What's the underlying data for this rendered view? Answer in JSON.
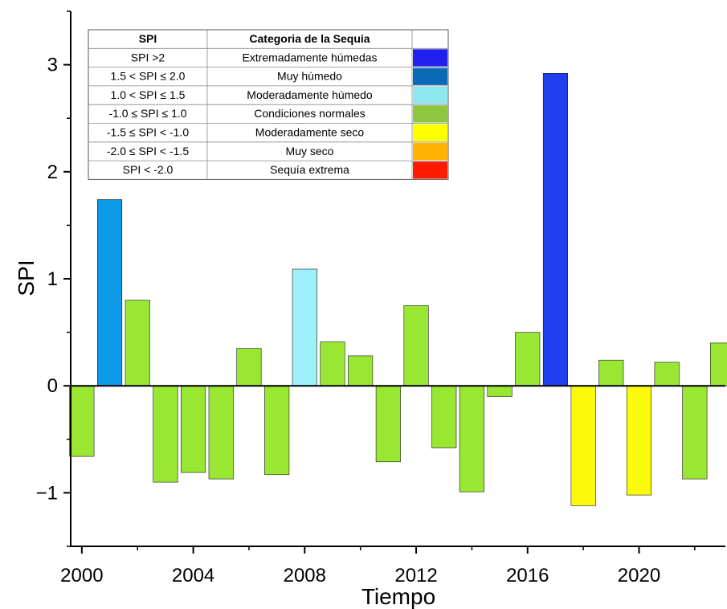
{
  "chart_data": {
    "type": "bar",
    "xlabel": "Tiempo",
    "ylabel": "SPI",
    "xlim": [
      1999.6,
      2023.1
    ],
    "ylim": [
      -1.5,
      3.5
    ],
    "x_ticks": [
      2000,
      2004,
      2008,
      2012,
      2016,
      2020
    ],
    "y_ticks": [
      -1,
      0,
      1,
      2,
      3
    ],
    "y_tick_labels": [
      "−1",
      "0",
      "1",
      "2",
      "3"
    ],
    "x": [
      2000,
      2001,
      2002,
      2003,
      2004,
      2005,
      2006,
      2007,
      2008,
      2009,
      2010,
      2011,
      2012,
      2013,
      2014,
      2015,
      2016,
      2017,
      2018,
      2019,
      2020,
      2021,
      2022,
      2023
    ],
    "values": [
      -0.66,
      1.74,
      0.8,
      -0.9,
      -0.81,
      -0.87,
      0.35,
      -0.83,
      1.09,
      0.41,
      0.28,
      -0.71,
      0.75,
      -0.58,
      -0.99,
      -0.1,
      0.5,
      2.92,
      -1.12,
      0.24,
      -1.02,
      0.22,
      -0.87,
      0.4
    ],
    "bar_colors": [
      "#99e633",
      "#0d9be8",
      "#99e633",
      "#99e633",
      "#99e633",
      "#99e633",
      "#99e633",
      "#99e633",
      "#9ef0fa",
      "#99e633",
      "#99e633",
      "#99e633",
      "#99e633",
      "#99e633",
      "#99e633",
      "#99e633",
      "#99e633",
      "#1f3ef0",
      "#fafa0a",
      "#99e633",
      "#fafa0a",
      "#99e633",
      "#99e633",
      "#99e633"
    ],
    "legend": {
      "headers": [
        "SPI",
        "Categoria de la Sequia"
      ],
      "rows": [
        {
          "range": "SPI >2",
          "category": "Extremadamente húmedas",
          "color": "#1f1ff0"
        },
        {
          "range": "1.5 < SPI ≤ 2.0",
          "category": "Muy húmedo",
          "color": "#0b6ab5"
        },
        {
          "range": "1.0 < SPI ≤ 1.5",
          "category": "Moderadamente húmedo",
          "color": "#8ee6ee"
        },
        {
          "range": "-1.0 ≤ SPI ≤ 1.0",
          "category": "Condiciones normales",
          "color": "#8ec63f"
        },
        {
          "range": "-1.5 ≤ SPI < -1.0",
          "category": "Moderadamente seco",
          "color": "#ffff00"
        },
        {
          "range": "-2.0 ≤ SPI < -1.5",
          "category": "Muy seco",
          "color": "#ffb300"
        },
        {
          "range": "SPI < -2.0",
          "category": "Sequía extrema",
          "color": "#ff1a00"
        }
      ]
    }
  }
}
